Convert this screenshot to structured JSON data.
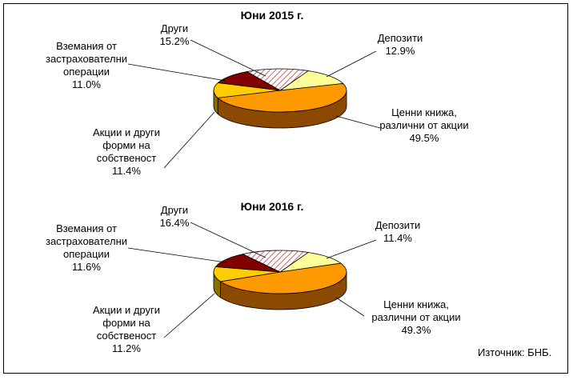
{
  "source_note": "Източник: БНБ.",
  "chart_data": [
    {
      "type": "pie",
      "title": "Юни 2015 г.",
      "categories": [
        "Депозити",
        "Ценни книжа, различни от акции",
        "Акции и други форми на собственост",
        "Вземания от застрахователни операции",
        "Други"
      ],
      "values": [
        12.9,
        49.5,
        11.4,
        11.0,
        15.2
      ],
      "value_labels": [
        "12.9%",
        "49.5%",
        "11.4%",
        "11.0%",
        "15.2%"
      ],
      "label_lines": [
        [
          "Депозити"
        ],
        [
          "Ценни книжа,",
          "различни от акции"
        ],
        [
          "Акции и други",
          "форми на",
          "собственост"
        ],
        [
          "Вземания от",
          "застрахователни",
          "операции"
        ],
        [
          "Други"
        ]
      ]
    },
    {
      "type": "pie",
      "title": "Юни 2016 г.",
      "categories": [
        "Депозити",
        "Ценни книжа, различни от акции",
        "Акции и други форми на собственост",
        "Вземания от застрахователни операции",
        "Други"
      ],
      "values": [
        11.4,
        49.3,
        11.2,
        11.6,
        16.4
      ],
      "value_labels": [
        "11.4%",
        "49.3%",
        "11.2%",
        "11.6%",
        "16.4%"
      ],
      "label_lines": [
        [
          "Депозити"
        ],
        [
          "Ценни книжа,",
          "различни от акции"
        ],
        [
          "Акции и други",
          "форми на",
          "собственост"
        ],
        [
          "Вземания от",
          "застрахователни",
          "операции"
        ],
        [
          "Други"
        ]
      ]
    }
  ],
  "colors": {
    "deposits": "#FFFF99",
    "securities": "#FF9900",
    "equity": "#FFCC00",
    "receivables": "#800000",
    "other_hatch": "#CC6666"
  }
}
